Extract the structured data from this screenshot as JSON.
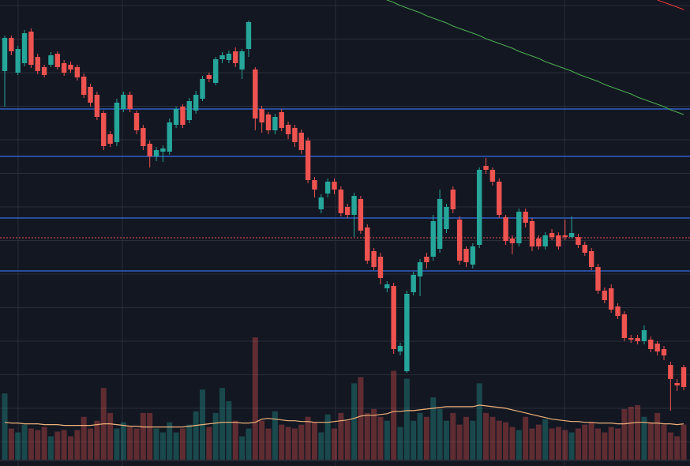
{
  "chart_data": {
    "type": "candlestick",
    "ylim": [
      0,
      590
    ],
    "volume_ylim": [
      0,
      590
    ],
    "grid": true,
    "up_color": "#26a69a",
    "down_color": "#ef5350",
    "open": [
      500,
      542,
      498,
      510,
      550,
      518,
      505,
      508,
      522,
      510,
      508,
      505,
      493,
      480,
      470,
      447,
      420,
      410,
      452,
      470,
      447,
      428,
      408,
      392,
      398,
      398,
      432,
      455,
      438,
      450,
      465,
      495,
      485,
      515,
      514,
      525,
      502,
      528,
      502,
      452,
      445,
      425,
      448,
      432,
      428,
      422,
      412,
      362,
      325,
      345,
      360,
      350,
      328,
      318,
      338,
      302,
      272,
      265,
      225,
      228,
      145,
      120,
      220,
      240,
      265,
      265,
      275,
      300,
      350,
      312,
      275,
      255,
      280,
      380,
      375,
      360,
      315,
      288,
      282,
      322,
      310,
      288,
      278,
      295,
      292,
      292,
      290,
      290,
      280,
      272,
      252,
      222,
      225,
      202,
      192,
      162,
      162,
      158,
      160,
      155,
      148,
      128,
      105,
      125
    ],
    "high": [
      545,
      545,
      532,
      552,
      554,
      522,
      508,
      524,
      525,
      514,
      512,
      508,
      497,
      484,
      474,
      450,
      424,
      465,
      474,
      474,
      450,
      432,
      412,
      404,
      406,
      440,
      455,
      458,
      466,
      475,
      494,
      498,
      518,
      524,
      526,
      530,
      528,
      564,
      505,
      456,
      448,
      446,
      452,
      436,
      432,
      426,
      416,
      366,
      344,
      364,
      364,
      354,
      332,
      346,
      342,
      306,
      276,
      270,
      234,
      232,
      156,
      222,
      246,
      262,
      270,
      318,
      350,
      332,
      354,
      316,
      278,
      282,
      378,
      390,
      378,
      364,
      318,
      292,
      326,
      326,
      314,
      292,
      296,
      300,
      296,
      312,
      316,
      294,
      284,
      276,
      256,
      226,
      230,
      206,
      196,
      166,
      166,
      178,
      164,
      158,
      152,
      132,
      110,
      128
    ],
    "low": [
      455,
      520,
      495,
      506,
      504,
      496,
      492,
      505,
      502,
      494,
      498,
      488,
      466,
      455,
      438,
      400,
      404,
      405,
      448,
      448,
      420,
      400,
      378,
      386,
      385,
      394,
      428,
      428,
      434,
      446,
      462,
      486,
      482,
      510,
      510,
      505,
      490,
      518,
      425,
      422,
      420,
      420,
      424,
      414,
      404,
      395,
      358,
      340,
      320,
      340,
      344,
      316,
      314,
      290,
      294,
      256,
      248,
      230,
      220,
      142,
      140,
      118,
      216,
      215,
      250,
      260,
      270,
      295,
      320,
      255,
      252,
      250,
      276,
      370,
      355,
      314,
      280,
      268,
      278,
      302,
      272,
      274,
      274,
      286,
      274,
      286,
      288,
      276,
      266,
      248,
      218,
      206,
      194,
      186,
      158,
      156,
      154,
      154,
      144,
      140,
      134,
      70,
      95,
      96
    ],
    "close": [
      542,
      525,
      528,
      548,
      508,
      500,
      495,
      520,
      505,
      498,
      502,
      492,
      470,
      460,
      442,
      405,
      408,
      460,
      470,
      452,
      425,
      405,
      392,
      400,
      402,
      435,
      452,
      432,
      462,
      470,
      490,
      490,
      515,
      520,
      522,
      510,
      525,
      562,
      440,
      435,
      425,
      442,
      428,
      420,
      410,
      400,
      362,
      350,
      340,
      360,
      350,
      320,
      318,
      342,
      298,
      260,
      252,
      238,
      230,
      148,
      152,
      218,
      242,
      258,
      258,
      310,
      338,
      328,
      325,
      260,
      258,
      278,
      375,
      375,
      360,
      318,
      285,
      282,
      322,
      308,
      278,
      278,
      292,
      290,
      278,
      290,
      295,
      280,
      270,
      252,
      222,
      210,
      198,
      190,
      162,
      160,
      158,
      172,
      148,
      145,
      140,
      110,
      102,
      100
    ],
    "volume": [
      85,
      40,
      35,
      45,
      40,
      38,
      42,
      30,
      36,
      38,
      30,
      38,
      55,
      40,
      50,
      92,
      60,
      40,
      48,
      42,
      40,
      60,
      60,
      40,
      35,
      48,
      35,
      40,
      45,
      62,
      90,
      42,
      60,
      92,
      75,
      50,
      30,
      40,
      157,
      50,
      40,
      62,
      45,
      42,
      40,
      45,
      55,
      48,
      35,
      58,
      40,
      60,
      50,
      98,
      106,
      60,
      65,
      55,
      50,
      114,
      42,
      104,
      50,
      60,
      55,
      80,
      65,
      50,
      60,
      45,
      55,
      50,
      98,
      60,
      55,
      50,
      48,
      42,
      38,
      55,
      40,
      45,
      52,
      40,
      42,
      38,
      35,
      40,
      45,
      48,
      40,
      35,
      42,
      40,
      65,
      68,
      70,
      55,
      48,
      60,
      45,
      35,
      30,
      45
    ],
    "volume_ma": {
      "color": "#f0b27a",
      "values": [
        48,
        47,
        47,
        46,
        46,
        46,
        45,
        45,
        45,
        44,
        44,
        44,
        44,
        44,
        45,
        46,
        46,
        45,
        44,
        43,
        43,
        42,
        42,
        42,
        42,
        42,
        42,
        42,
        43,
        44,
        45,
        46,
        47,
        48,
        48,
        48,
        47,
        47,
        48,
        52,
        53,
        52,
        51,
        50,
        50,
        49,
        49,
        48,
        48,
        48,
        49,
        50,
        51,
        53,
        56,
        57,
        57,
        58,
        59,
        62,
        62,
        63,
        63,
        64,
        65,
        66,
        67,
        68,
        68,
        68,
        68,
        68,
        70,
        69,
        68,
        67,
        66,
        64,
        62,
        60,
        58,
        56,
        54,
        52,
        51,
        50,
        49,
        49,
        48,
        48,
        47,
        47,
        47,
        46,
        46,
        47,
        48,
        48,
        47,
        47,
        46,
        46,
        45,
        46
      ]
    },
    "moving_averages": [
      {
        "color": "#4caf50",
        "values": [
          null,
          null,
          null,
          null,
          null,
          null,
          null,
          null,
          null,
          null,
          null,
          null,
          null,
          null,
          null,
          null,
          null,
          null,
          null,
          null,
          null,
          null,
          null,
          null,
          null,
          null,
          null,
          null,
          null,
          null,
          null,
          null,
          null,
          null,
          null,
          null,
          null,
          null,
          null,
          null,
          null,
          null,
          null,
          null,
          null,
          null,
          null,
          null,
          null,
          null,
          null,
          null,
          null,
          null,
          null,
          null,
          null,
          593,
          590,
          587,
          583,
          580,
          577,
          574,
          570,
          567,
          564,
          561,
          557,
          554,
          551,
          548,
          545,
          541,
          538,
          535,
          532,
          529,
          525,
          522,
          519,
          516,
          512,
          509,
          506,
          503,
          500,
          496,
          493,
          490,
          487,
          483,
          480,
          477,
          474,
          471,
          467,
          464,
          461,
          458,
          455,
          451,
          448,
          445
        ]
      },
      {
        "color": "#e53935",
        "values": [
          null,
          null,
          null,
          null,
          null,
          null,
          null,
          null,
          null,
          null,
          null,
          null,
          null,
          null,
          null,
          null,
          null,
          null,
          null,
          null,
          null,
          null,
          null,
          null,
          null,
          null,
          null,
          null,
          null,
          null,
          null,
          null,
          null,
          null,
          null,
          null,
          null,
          null,
          null,
          null,
          null,
          null,
          null,
          null,
          null,
          null,
          null,
          null,
          null,
          null,
          null,
          null,
          null,
          null,
          null,
          null,
          null,
          null,
          null,
          null,
          null,
          null,
          null,
          null,
          null,
          null,
          null,
          null,
          null,
          null,
          null,
          null,
          null,
          null,
          null,
          null,
          null,
          null,
          null,
          null,
          null,
          null,
          null,
          null,
          null,
          null,
          null,
          null,
          null,
          null,
          null,
          null,
          null,
          null,
          null,
          null,
          null,
          null,
          null,
          590,
          587,
          584,
          581,
          578
        ]
      }
    ],
    "levels": [
      {
        "value": 452,
        "color": "#2f5fc4"
      },
      {
        "value": 392,
        "color": "#2f5fc4"
      },
      {
        "value": 314,
        "color": "#2f5fc4"
      },
      {
        "value": 247,
        "color": "#2f5fc4"
      }
    ],
    "price_line": {
      "value": 289,
      "color": "#ef5350"
    }
  }
}
